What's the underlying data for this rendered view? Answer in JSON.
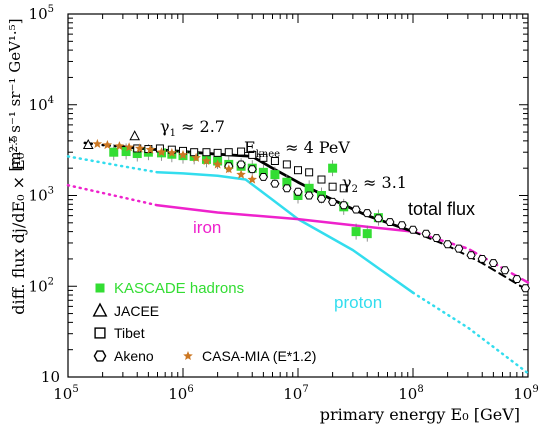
{
  "chart_data": {
    "type": "scatter",
    "title": "",
    "xlabel": "primary energy  E₀  [GeV]",
    "ylabel_main": "diff. flux  dj/dE₀ × E₀",
    "ylabel_exp": "2.5",
    "ylabel_units": "[m⁻² s⁻¹ sr⁻¹ GeV¹·⁵]",
    "x_scale": "log",
    "y_scale": "log",
    "xlim": [
      100000,
      1000000000
    ],
    "ylim": [
      10,
      100000
    ],
    "x_ticks": [
      {
        "value": 100000,
        "base": "10",
        "exp": "5"
      },
      {
        "value": 1000000,
        "base": "10",
        "exp": "6"
      },
      {
        "value": 10000000,
        "base": "10",
        "exp": "7"
      },
      {
        "value": 100000000,
        "base": "10",
        "exp": "8"
      },
      {
        "value": 1000000000,
        "base": "10",
        "exp": "9"
      }
    ],
    "y_ticks": [
      {
        "value": 10,
        "base": "10",
        "exp": ""
      },
      {
        "value": 100,
        "base": "10",
        "exp": "2"
      },
      {
        "value": 1000,
        "base": "10",
        "exp": "3"
      },
      {
        "value": 10000,
        "base": "10",
        "exp": "4"
      },
      {
        "value": 100000,
        "base": "10",
        "exp": "5"
      }
    ],
    "grid": false,
    "legend_placement": "bottom-left",
    "colors": {
      "kascade": "#33dd33",
      "iron": "#ee22cc",
      "proton": "#33ddee",
      "total": "#000000",
      "casa": "#cc7722"
    },
    "annotations": {
      "gamma1": {
        "symbol": "γ",
        "sub": "1",
        "text": "≈ 2.7"
      },
      "eknee": {
        "symbol": "E",
        "sub": "knee",
        "text": "≈ 4 PeV"
      },
      "gamma2": {
        "symbol": "γ",
        "sub": "2",
        "text": "≈ 3.1"
      },
      "total_flux": "total flux",
      "iron": "iron",
      "proton": "proton"
    },
    "legend": [
      {
        "label": "KASCADE hadrons",
        "marker": "green-square"
      },
      {
        "label": "JACEE",
        "marker": "triangle"
      },
      {
        "label": "Tibet",
        "marker": "open-square"
      },
      {
        "label": "Akeno",
        "marker": "open-hexagon"
      },
      {
        "label": "CASA-MIA (E*1.2)",
        "marker": "star"
      }
    ],
    "curves": {
      "total_dotted": [
        [
          140000,
          3800
        ],
        [
          200000,
          3600
        ],
        [
          300000,
          3450
        ]
      ],
      "total": [
        [
          300000,
          3450
        ],
        [
          600000,
          3200
        ],
        [
          1000000,
          3050
        ],
        [
          2000000,
          2850
        ],
        [
          4000000,
          2700
        ],
        [
          6000000,
          2000
        ],
        [
          10000000,
          1400
        ],
        [
          20000000,
          900
        ],
        [
          40000000,
          600
        ],
        [
          100000000,
          400
        ]
      ],
      "total_dashed": [
        [
          100000000,
          400
        ],
        [
          200000000,
          280
        ],
        [
          400000000,
          180
        ],
        [
          1000000000,
          90
        ]
      ],
      "iron_dotted": [
        [
          100000,
          1300
        ],
        [
          300000,
          950
        ],
        [
          600000,
          780
        ]
      ],
      "iron": [
        [
          600000,
          780
        ],
        [
          2000000,
          650
        ],
        [
          10000000,
          550
        ],
        [
          30000000,
          470
        ],
        [
          100000000,
          400
        ]
      ],
      "iron_dashed": [
        [
          100000000,
          400
        ],
        [
          300000000,
          260
        ],
        [
          1000000000,
          110
        ]
      ],
      "proton_dotted": [
        [
          100000,
          2700
        ],
        [
          300000,
          2100
        ],
        [
          600000,
          1800
        ]
      ],
      "proton": [
        [
          600000,
          1800
        ],
        [
          1000000,
          1750
        ],
        [
          2000000,
          1650
        ],
        [
          3500000,
          1500
        ],
        [
          6000000,
          900
        ],
        [
          10000000,
          550
        ],
        [
          30000000,
          250
        ],
        [
          100000000,
          85
        ]
      ],
      "proton_dotted_high": [
        [
          100000000,
          85
        ],
        [
          300000000,
          35
        ],
        [
          1000000000,
          11
        ]
      ]
    },
    "series": [
      {
        "name": "KASCADE hadrons",
        "marker": "green-square",
        "points": [
          [
            250000,
            3000
          ],
          [
            320000,
            3050
          ],
          [
            400000,
            2900
          ],
          [
            500000,
            3000
          ],
          [
            650000,
            2950
          ],
          [
            800000,
            2850
          ],
          [
            1000000,
            2750
          ],
          [
            1250000,
            2700
          ],
          [
            1600000,
            2500
          ],
          [
            2000000,
            2400
          ],
          [
            2500000,
            2200
          ],
          [
            3200000,
            2100
          ],
          [
            4000000,
            2000
          ],
          [
            5000000,
            1800
          ],
          [
            6300000,
            1700
          ],
          [
            8000000,
            1400
          ],
          [
            10000000,
            1000
          ],
          [
            12500000,
            1200
          ],
          [
            16000000,
            1000
          ],
          [
            20000000,
            2000
          ],
          [
            25000000,
            750
          ],
          [
            32000000,
            400
          ],
          [
            40000000,
            380
          ],
          [
            50000000,
            570
          ]
        ]
      },
      {
        "name": "JACEE",
        "marker": "triangle",
        "points": [
          [
            150000,
            3600
          ],
          [
            380000,
            4500
          ]
        ]
      },
      {
        "name": "Tibet",
        "marker": "open-square",
        "points": [
          [
            400000,
            3300
          ],
          [
            500000,
            3250
          ],
          [
            630000,
            3300
          ],
          [
            800000,
            3200
          ],
          [
            1000000,
            3100
          ],
          [
            1250000,
            3000
          ],
          [
            1600000,
            3000
          ],
          [
            2000000,
            2950
          ],
          [
            2500000,
            3000
          ],
          [
            3200000,
            3050
          ],
          [
            4000000,
            2800
          ],
          [
            5000000,
            2600
          ],
          [
            6300000,
            2400
          ],
          [
            8000000,
            2200
          ],
          [
            10000000,
            1900
          ],
          [
            12500000,
            1800
          ],
          [
            16000000,
            1500
          ],
          [
            20000000,
            1250
          ],
          [
            25000000,
            1200
          ]
        ]
      },
      {
        "name": "Akeno",
        "marker": "open-hexagon",
        "points": [
          [
            2500000,
            2100
          ],
          [
            3200000,
            2200
          ],
          [
            4000000,
            1950
          ],
          [
            5000000,
            1600
          ],
          [
            6300000,
            1350
          ],
          [
            8000000,
            1200
          ],
          [
            10000000,
            1100
          ],
          [
            12500000,
            1000
          ],
          [
            16000000,
            920
          ],
          [
            20000000,
            850
          ],
          [
            25000000,
            780
          ],
          [
            32000000,
            700
          ],
          [
            40000000,
            640
          ],
          [
            50000000,
            560
          ],
          [
            63000000,
            510
          ],
          [
            80000000,
            470
          ],
          [
            100000000,
            420
          ],
          [
            130000000,
            380
          ],
          [
            160000000,
            340
          ],
          [
            200000000,
            290
          ],
          [
            250000000,
            260
          ],
          [
            320000000,
            220
          ],
          [
            400000000,
            200
          ],
          [
            500000000,
            180
          ],
          [
            630000000,
            150
          ],
          [
            800000000,
            120
          ],
          [
            950000000,
            95
          ]
        ]
      },
      {
        "name": "CASA-MIA (E*1.2)",
        "marker": "star",
        "points": [
          [
            180000,
            3700
          ],
          [
            220000,
            3600
          ],
          [
            280000,
            3500
          ],
          [
            340000,
            3400
          ],
          [
            420000,
            3300
          ],
          [
            520000,
            3200
          ],
          [
            650000,
            3000
          ],
          [
            800000,
            2950
          ],
          [
            1000000,
            2800
          ],
          [
            1300000,
            2600
          ],
          [
            1600000,
            2400
          ],
          [
            2000000,
            2200
          ],
          [
            2500000,
            1950
          ],
          [
            3200000,
            1700
          ],
          [
            4000000,
            1500
          ]
        ]
      }
    ]
  }
}
